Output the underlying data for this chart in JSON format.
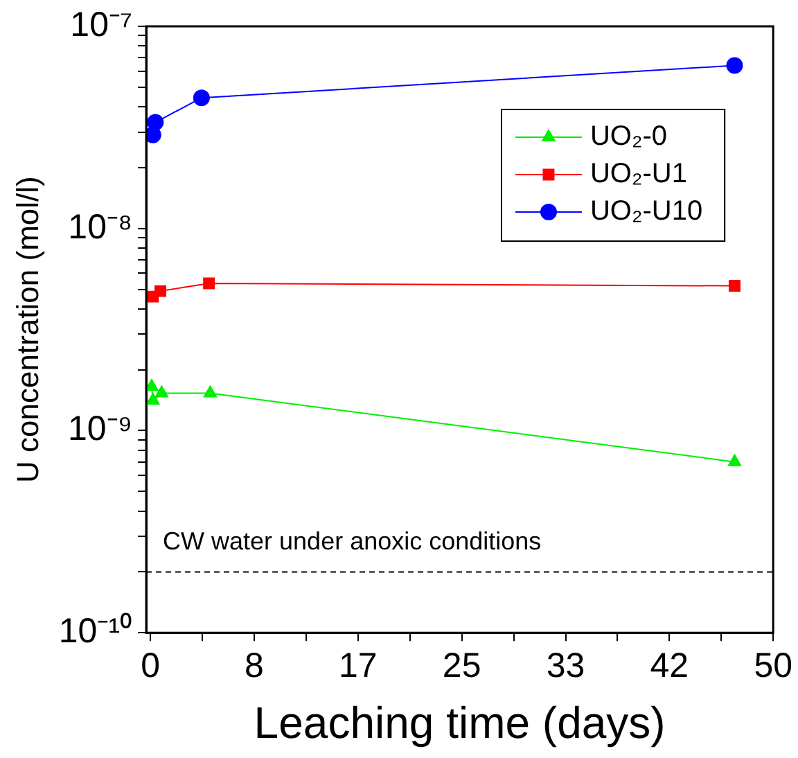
{
  "chart_data": {
    "type": "line",
    "xlabel": "Leaching time (days)",
    "ylabel": "U concentration (mol/l)",
    "xlim": [
      -0.34,
      50
    ],
    "xticks": [
      0,
      {
        "value": 4.1667,
        "label": null
      },
      {
        "value": 8.3333,
        "label": "8"
      },
      {
        "value": 12.5,
        "label": null
      },
      {
        "value": 16.6667,
        "label": "17"
      },
      {
        "value": 20.8333,
        "label": null
      },
      {
        "value": 25,
        "label": "25"
      },
      {
        "value": 29.1667,
        "label": null
      },
      {
        "value": 33.3333,
        "label": "33"
      },
      {
        "value": 37.5,
        "label": null
      },
      {
        "value": 41.6667,
        "label": "42"
      },
      {
        "value": 45.8333,
        "label": null
      },
      50
    ],
    "log": "y",
    "ylim": [
      1e-10,
      1e-07
    ],
    "yticks": [
      {
        "value": 1e-10,
        "label": "10⁻¹⁰"
      },
      {
        "value": 2e-10,
        "label": null
      },
      {
        "value": 3e-10,
        "label": null
      },
      {
        "value": 4e-10,
        "label": null
      },
      {
        "value": 5e-10,
        "label": null
      },
      {
        "value": 6e-10,
        "label": null
      },
      {
        "value": 7e-10,
        "label": null
      },
      {
        "value": 8e-10,
        "label": null
      },
      {
        "value": 9e-10,
        "label": null
      },
      {
        "value": 1e-09,
        "label": "10⁻⁹"
      },
      {
        "value": 2e-09,
        "label": null
      },
      {
        "value": 3e-09,
        "label": null
      },
      {
        "value": 4e-09,
        "label": null
      },
      {
        "value": 5e-09,
        "label": null
      },
      {
        "value": 6e-09,
        "label": null
      },
      {
        "value": 7e-09,
        "label": null
      },
      {
        "value": 8e-09,
        "label": null
      },
      {
        "value": 9e-09,
        "label": null
      },
      {
        "value": 1e-08,
        "label": "10⁻⁸"
      },
      {
        "value": 2e-08,
        "label": null
      },
      {
        "value": 3e-08,
        "label": null
      },
      {
        "value": 4e-08,
        "label": null
      },
      {
        "value": 5e-08,
        "label": null
      },
      {
        "value": 6e-08,
        "label": null
      },
      {
        "value": 7e-08,
        "label": null
      },
      {
        "value": 8e-08,
        "label": null
      },
      {
        "value": 9e-08,
        "label": null
      },
      {
        "value": 1e-07,
        "label": "10⁻⁷"
      }
    ],
    "legend": "top right",
    "series": [
      {
        "name": "UO₂-0",
        "color": "#00ee00",
        "marker": "triangle",
        "x": [
          0.1,
          0.2,
          0.9,
          4.8,
          46.9
        ],
        "values": [
          1.65e-09,
          1.41e-09,
          1.53e-09,
          1.53e-09,
          7e-10
        ]
      },
      {
        "name": "UO₂-U1",
        "color": "#ff0000",
        "marker": "square",
        "x": [
          0.2,
          0.8,
          4.7,
          46.9
        ],
        "values": [
          4.6e-09,
          4.9e-09,
          5.35e-09,
          5.2e-09
        ]
      },
      {
        "name": "UO₂-U10",
        "color": "#0000ff",
        "marker": "circle",
        "x": [
          0.2,
          0.4,
          4.1,
          46.9
        ],
        "values": [
          2.9e-08,
          3.35e-08,
          4.43e-08,
          6.4e-08
        ]
      }
    ],
    "ref_lines": [
      {
        "axis": "y",
        "value": 2e-10,
        "label": "CW water under anoxic conditions",
        "line_style": "dashed",
        "color": "#000000"
      }
    ]
  }
}
